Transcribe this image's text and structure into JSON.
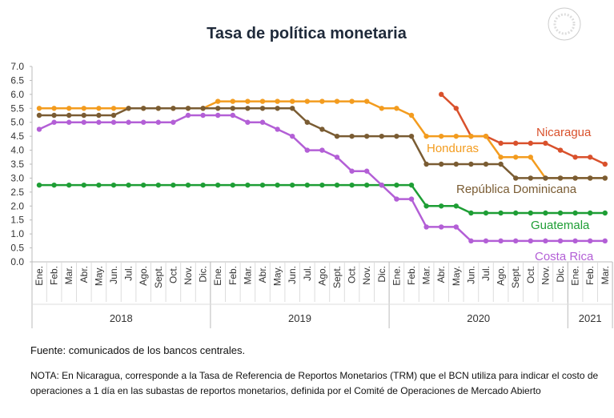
{
  "chart_data": {
    "type": "line",
    "title": "Tasa de política monetaria",
    "groups": [
      {
        "label": "2018",
        "categories": [
          "Ene.",
          "Feb.",
          "Mar.",
          "Abr.",
          "May.",
          "Jun.",
          "Jul.",
          "Ago.",
          "Sept.",
          "Oct.",
          "Nov.",
          "Dic."
        ]
      },
      {
        "label": "2019",
        "categories": [
          "Ene.",
          "Feb.",
          "Mar.",
          "Abr.",
          "May.",
          "Jun.",
          "Jul.",
          "Ago.",
          "Sept.",
          "Oct.",
          "Nov.",
          "Dic."
        ]
      },
      {
        "label": "2020",
        "categories": [
          "Ene.",
          "Feb.",
          "Mar.",
          "Abr.",
          "May.",
          "Jun.",
          "Jul.",
          "Ago.",
          "Sept.",
          "Oct.",
          "Nov.",
          "Dic."
        ]
      },
      {
        "label": "2021",
        "categories": [
          "Ene.",
          "Feb.",
          "Mar."
        ]
      }
    ],
    "ylim": [
      0,
      7
    ],
    "yticks": [
      {
        "value": 0,
        "label": "0.0"
      },
      {
        "value": 0.5,
        "label": "0.5"
      },
      {
        "value": 1,
        "label": "1.0"
      },
      {
        "value": 1.5,
        "label": "1.5"
      },
      {
        "value": 2,
        "label": "2.0"
      },
      {
        "value": 2.5,
        "label": "2.5"
      },
      {
        "value": 3,
        "label": "3.0"
      },
      {
        "value": 3.5,
        "label": "3.5"
      },
      {
        "value": 4,
        "label": "4.0"
      },
      {
        "value": 4.5,
        "label": "4.5"
      },
      {
        "value": 5,
        "label": "5.0"
      },
      {
        "value": 5.5,
        "label": "5.5"
      },
      {
        "value": 6,
        "label": "6.0"
      },
      {
        "value": 6.5,
        "label": "6.5"
      },
      {
        "value": 7,
        "label": "7.0"
      }
    ],
    "series": [
      {
        "name": "Nicaragua",
        "color": "#d9512c",
        "values": [
          null,
          null,
          null,
          null,
          null,
          null,
          null,
          null,
          null,
          null,
          null,
          null,
          null,
          null,
          null,
          null,
          null,
          null,
          null,
          null,
          null,
          null,
          null,
          null,
          null,
          null,
          null,
          6.0,
          5.5,
          4.5,
          4.5,
          4.25,
          4.25,
          4.25,
          4.25,
          4.0,
          3.75,
          3.75,
          3.5
        ]
      },
      {
        "name": "Honduras",
        "color": "#f39c1f",
        "values": [
          5.5,
          5.5,
          5.5,
          5.5,
          5.5,
          5.5,
          5.5,
          5.5,
          5.5,
          5.5,
          5.5,
          5.5,
          5.75,
          5.75,
          5.75,
          5.75,
          5.75,
          5.75,
          5.75,
          5.75,
          5.75,
          5.75,
          5.75,
          5.5,
          5.5,
          5.25,
          4.5,
          4.5,
          4.5,
          4.5,
          4.5,
          3.75,
          3.75,
          3.75,
          3.0,
          3.0,
          3.0,
          3.0,
          3.0
        ]
      },
      {
        "name": "República Dominicana",
        "color": "#7a5c33",
        "values": [
          5.25,
          5.25,
          5.25,
          5.25,
          5.25,
          5.25,
          5.5,
          5.5,
          5.5,
          5.5,
          5.5,
          5.5,
          5.5,
          5.5,
          5.5,
          5.5,
          5.5,
          5.5,
          5.0,
          4.75,
          4.5,
          4.5,
          4.5,
          4.5,
          4.5,
          4.5,
          3.5,
          3.5,
          3.5,
          3.5,
          3.5,
          3.5,
          3.0,
          3.0,
          3.0,
          3.0,
          3.0,
          3.0,
          3.0
        ]
      },
      {
        "name": "Guatemala",
        "color": "#1e9e35",
        "values": [
          2.75,
          2.75,
          2.75,
          2.75,
          2.75,
          2.75,
          2.75,
          2.75,
          2.75,
          2.75,
          2.75,
          2.75,
          2.75,
          2.75,
          2.75,
          2.75,
          2.75,
          2.75,
          2.75,
          2.75,
          2.75,
          2.75,
          2.75,
          2.75,
          2.75,
          2.75,
          2.0,
          2.0,
          2.0,
          1.75,
          1.75,
          1.75,
          1.75,
          1.75,
          1.75,
          1.75,
          1.75,
          1.75,
          1.75
        ]
      },
      {
        "name": "Costa Rica",
        "color": "#b35fd6",
        "values": [
          4.75,
          5.0,
          5.0,
          5.0,
          5.0,
          5.0,
          5.0,
          5.0,
          5.0,
          5.0,
          5.25,
          5.25,
          5.25,
          5.25,
          5.0,
          5.0,
          4.75,
          4.5,
          4.0,
          4.0,
          3.75,
          3.25,
          3.25,
          2.75,
          2.25,
          2.25,
          1.25,
          1.25,
          1.25,
          0.75,
          0.75,
          0.75,
          0.75,
          0.75,
          0.75,
          0.75,
          0.75,
          0.75,
          0.75
        ]
      }
    ]
  },
  "footer": {
    "source": "Fuente: comunicados de los bancos centrales.",
    "note": "NOTA: En Nicaragua, corresponde a la Tasa de Referencia de Reportos Monetarios (TRM) que el BCN utiliza para indicar el costo de operaciones a 1 día en las subastas de reportos monetarios, definida por el Comité de Operaciones de Mercado Abierto"
  }
}
